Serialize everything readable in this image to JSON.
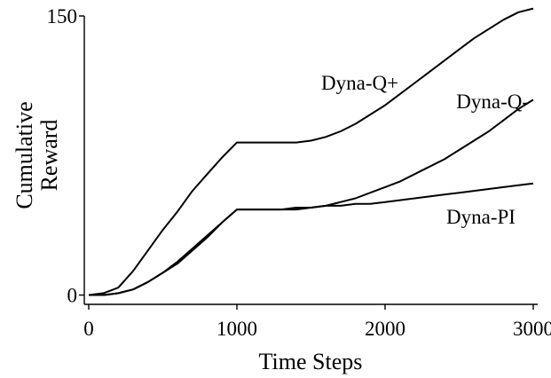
{
  "chart_data": {
    "type": "line",
    "title": "",
    "xlabel": "Time Steps",
    "ylabel": [
      "Cumulative",
      "Reward"
    ],
    "xlim": [
      -30,
      3030
    ],
    "ylim": [
      -5,
      150
    ],
    "xticks": [
      0,
      1000,
      2000,
      3000
    ],
    "yticks": [
      0,
      150
    ],
    "grid": false,
    "legend": "none",
    "series": [
      {
        "name": "Dyna-Q+",
        "color": "#000000",
        "x": [
          0,
          100,
          200,
          300,
          400,
          500,
          600,
          700,
          800,
          900,
          1000,
          1100,
          1200,
          1300,
          1400,
          1500,
          1600,
          1700,
          1800,
          1900,
          2000,
          2100,
          2200,
          2300,
          2400,
          2500,
          2600,
          2700,
          2800,
          2900,
          3000
        ],
        "y": [
          0,
          1,
          4,
          13,
          24,
          35,
          45,
          56,
          65,
          74,
          82,
          82,
          82,
          82,
          82,
          83,
          85,
          88,
          92,
          97,
          102,
          108,
          114,
          120,
          126,
          132,
          138,
          143,
          148,
          152,
          154
        ]
      },
      {
        "name": "Dyna-Q-",
        "color": "#000000",
        "x": [
          0,
          100,
          200,
          300,
          400,
          500,
          600,
          700,
          800,
          900,
          1000,
          1100,
          1200,
          1300,
          1400,
          1500,
          1600,
          1700,
          1800,
          1900,
          2000,
          2100,
          2200,
          2300,
          2400,
          2500,
          2600,
          2700,
          2800,
          2900,
          3000
        ],
        "y": [
          0,
          0,
          1,
          3,
          7,
          12,
          17,
          24,
          31,
          39,
          46,
          46,
          46,
          46,
          46,
          47,
          48,
          50,
          52,
          55,
          58,
          61,
          65,
          69,
          73,
          78,
          83,
          88,
          94,
          100,
          105
        ]
      },
      {
        "name": "Dyna-PI",
        "color": "#000000",
        "x": [
          0,
          100,
          200,
          300,
          400,
          500,
          600,
          700,
          800,
          900,
          1000,
          1100,
          1200,
          1300,
          1400,
          1500,
          1600,
          1700,
          1800,
          1900,
          2000,
          2100,
          2200,
          2300,
          2400,
          2500,
          2600,
          2700,
          2800,
          2900,
          3000
        ],
        "y": [
          0,
          0,
          1,
          3,
          7,
          12,
          18,
          25,
          32,
          39,
          46,
          46,
          46,
          46,
          47,
          47,
          48,
          48,
          49,
          49,
          50,
          51,
          52,
          53,
          54,
          55,
          56,
          57,
          58,
          59,
          60
        ]
      }
    ],
    "annotations": [
      {
        "text": "Dyna-Q+",
        "series": "Dyna-Q+"
      },
      {
        "text": "Dyna-Q-",
        "series": "Dyna-Q-"
      },
      {
        "text": "Dyna-PI",
        "series": "Dyna-PI"
      }
    ]
  }
}
